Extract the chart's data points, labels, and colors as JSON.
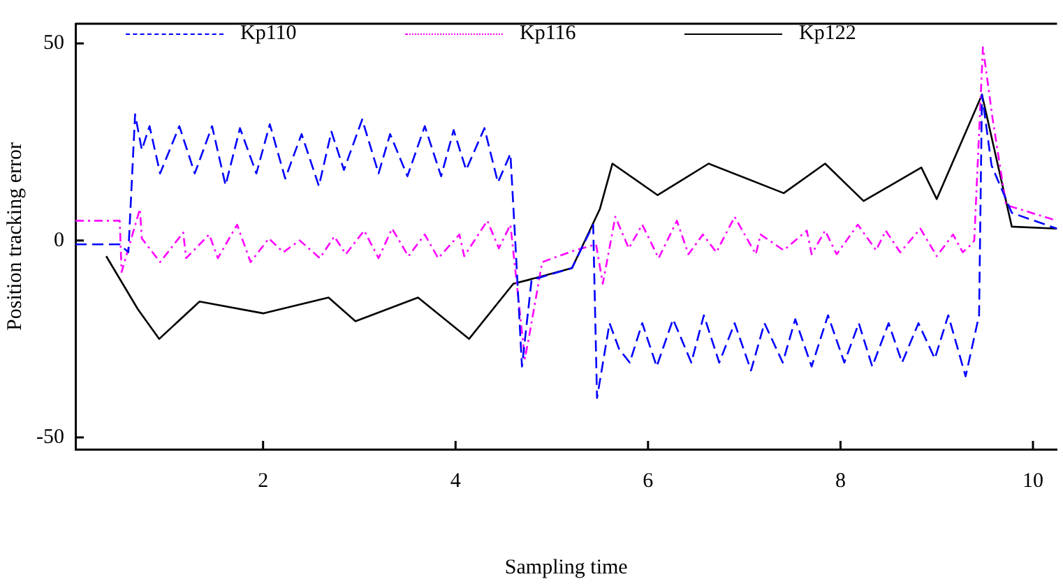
{
  "chart_data": {
    "type": "line",
    "xlabel": "Sampling time",
    "ylabel": "Position tracking error",
    "xlim": [
      0.05,
      10.25
    ],
    "xticks": [
      2,
      4,
      6,
      8,
      10
    ],
    "ylim": [
      -53,
      55
    ],
    "yticks": [
      -50,
      0,
      50
    ],
    "legend": "top",
    "marker": "none",
    "series": [
      {
        "name": "Kp110",
        "color": "#0000ff",
        "line_style": "dashed",
        "x": [
          0.05,
          0.51,
          0.6,
          0.67,
          0.74,
          0.82,
          0.93,
          1.13,
          1.29,
          1.47,
          1.61,
          1.76,
          1.93,
          2.07,
          2.23,
          2.4,
          2.58,
          2.71,
          2.84,
          3.03,
          3.2,
          3.32,
          3.5,
          3.68,
          3.85,
          3.98,
          4.11,
          4.3,
          4.44,
          4.57,
          4.62,
          4.69,
          4.79,
          5.21,
          5.43,
          5.47,
          5.6,
          5.7,
          5.81,
          5.94,
          6.09,
          6.26,
          6.45,
          6.58,
          6.74,
          6.9,
          7.07,
          7.21,
          7.4,
          7.53,
          7.7,
          7.87,
          8.04,
          8.19,
          8.33,
          8.5,
          8.64,
          8.81,
          8.98,
          9.12,
          9.3,
          9.44,
          9.47,
          9.57,
          9.78,
          10.25
        ],
        "values": [
          -1,
          -1,
          -3,
          32,
          23,
          29,
          17,
          29,
          17,
          29,
          14,
          28.5,
          17,
          29.5,
          15.7,
          27,
          13.8,
          27.6,
          17.9,
          30.7,
          17,
          27,
          16.3,
          29,
          16.3,
          28,
          17.9,
          28.5,
          14.7,
          22,
          0,
          -32,
          -10,
          -7,
          4,
          -40,
          -21,
          -27.6,
          -31,
          -21,
          -32,
          -20,
          -31,
          -19,
          -31,
          -21,
          -33,
          -21,
          -31,
          -20,
          -32,
          -19,
          -31,
          -21,
          -32,
          -21,
          -31,
          -21,
          -30,
          -19,
          -34.5,
          -19,
          37,
          19,
          7,
          3
        ]
      },
      {
        "name": "Kp116",
        "color": "#ff00ff",
        "line_style": "dashdot",
        "x": [
          0.05,
          0.51,
          0.53,
          0.72,
          0.74,
          0.93,
          1.17,
          1.2,
          1.44,
          1.53,
          1.73,
          1.87,
          2.06,
          2.21,
          2.38,
          2.59,
          2.74,
          2.86,
          3.05,
          3.2,
          3.34,
          3.51,
          3.68,
          3.82,
          4.04,
          4.09,
          4.33,
          4.45,
          4.57,
          4.72,
          4.76,
          4.9,
          5.24,
          5.46,
          5.53,
          5.66,
          5.8,
          5.94,
          6.11,
          6.3,
          6.42,
          6.57,
          6.71,
          6.9,
          7.12,
          7.17,
          7.41,
          7.65,
          7.7,
          7.84,
          7.96,
          8.18,
          8.37,
          8.47,
          8.62,
          8.83,
          9.0,
          9.17,
          9.27,
          9.36,
          9.39,
          9.48,
          9.58,
          9.72,
          10.25
        ],
        "values": [
          5,
          5,
          -8,
          8,
          0.5,
          -5.5,
          2,
          -4.5,
          1.5,
          -4.5,
          4,
          -5.5,
          0.5,
          -3,
          0,
          -4.5,
          1,
          -3.5,
          2.5,
          -4.5,
          3,
          -4,
          1.5,
          -4.5,
          1.5,
          -4,
          5,
          -2,
          4,
          -30,
          -25,
          -5.5,
          -2.5,
          -1,
          -11,
          6,
          -2,
          4,
          -4.5,
          5,
          -3.5,
          1.5,
          -3,
          6,
          -3.5,
          1.5,
          -2.5,
          2.5,
          -3.5,
          2.5,
          -3.5,
          4,
          -2.5,
          2.5,
          -3,
          3,
          -4,
          1.5,
          -3,
          -1,
          0,
          49,
          31,
          9,
          5
        ]
      },
      {
        "name": "Kp122",
        "color": "#000000",
        "line_style": "solid",
        "x": [
          0.37,
          0.7,
          0.92,
          1.34,
          2.0,
          2.68,
          2.96,
          3.61,
          4.14,
          4.6,
          4.76,
          5.21,
          5.5,
          5.63,
          6.1,
          6.63,
          7.41,
          7.84,
          8.24,
          8.84,
          9.0,
          9.47,
          9.78,
          10.25
        ],
        "values": [
          -4,
          -17.5,
          -25,
          -15.5,
          -18.5,
          -14.5,
          -20.5,
          -14.5,
          -25,
          -11,
          -10,
          -7,
          8,
          19.5,
          11.5,
          19.5,
          12,
          19.5,
          10,
          18.5,
          10.5,
          37,
          3.5,
          3
        ]
      }
    ]
  }
}
